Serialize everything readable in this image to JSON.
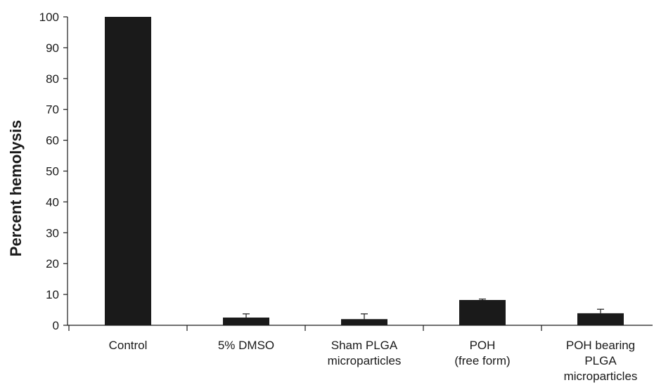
{
  "chart_data": {
    "type": "bar",
    "title": "",
    "xlabel": "",
    "ylabel": "Percent hemolysis",
    "ylim": [
      0,
      100
    ],
    "yticks": [
      0,
      10,
      20,
      30,
      40,
      50,
      60,
      70,
      80,
      90,
      100
    ],
    "grid": false,
    "legend": "none",
    "categories": [
      [
        "Control"
      ],
      [
        "5% DMSO"
      ],
      [
        "Sham PLGA",
        "microparticles"
      ],
      [
        "POH",
        "(free form)"
      ],
      [
        "POH bearing",
        "PLGA",
        "microparticles"
      ]
    ],
    "values": [
      100,
      2.5,
      2.0,
      8.2,
      3.9
    ],
    "errors": [
      0,
      1.2,
      1.7,
      0.3,
      1.3
    ],
    "bar_color": "#1a1a1a",
    "axis_color": "#1a1a1a"
  }
}
